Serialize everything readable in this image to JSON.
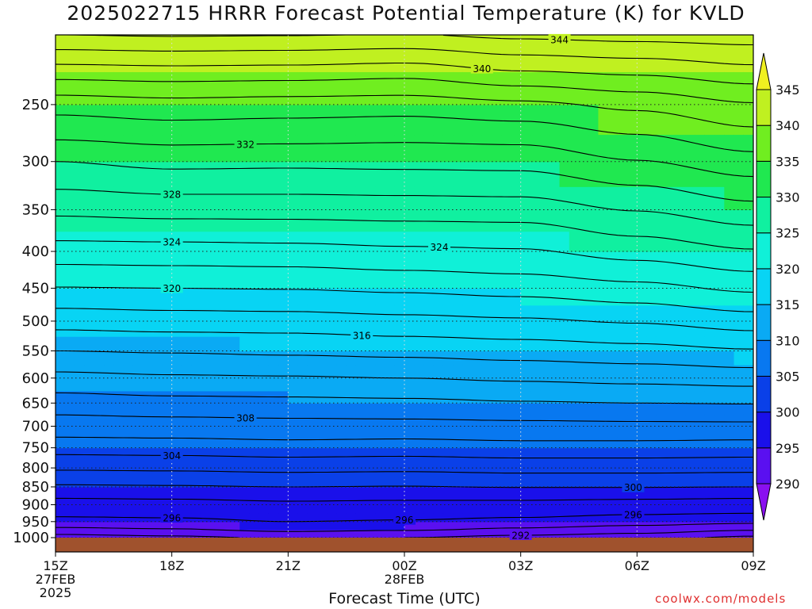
{
  "title": "2025022715 HRRR Forecast Potential Temperature (K) for KVLD",
  "credit": "coolwx.com/models",
  "chart_data": {
    "type": "heatmap",
    "title": "2025022715 HRRR Forecast Potential Temperature (K) for KVLD",
    "xlabel": "Forecast Time (UTC)",
    "ylabel": "",
    "x_ticks": [
      {
        "label": "15Z",
        "sub": [
          "27FEB",
          "2025"
        ],
        "hour": 0
      },
      {
        "label": "18Z",
        "sub": [],
        "hour": 3
      },
      {
        "label": "21Z",
        "sub": [],
        "hour": 6
      },
      {
        "label": "00Z",
        "sub": [
          "28FEB"
        ],
        "hour": 9
      },
      {
        "label": "03Z",
        "sub": [],
        "hour": 12
      },
      {
        "label": "06Z",
        "sub": [],
        "hour": 15
      },
      {
        "label": "09Z",
        "sub": [],
        "hour": 18
      }
    ],
    "xlim": [
      0,
      18
    ],
    "y_ticks": [
      250,
      300,
      350,
      400,
      450,
      500,
      550,
      600,
      650,
      700,
      750,
      800,
      850,
      900,
      950,
      1000
    ],
    "ylim": [
      200,
      1000
    ],
    "y_scale": "log-pressure (inverted)",
    "grid": true,
    "colorbar": {
      "levels": [
        290,
        295,
        300,
        305,
        310,
        315,
        320,
        325,
        330,
        335,
        340,
        345
      ],
      "colors": [
        "#8a10f0",
        "#5a10f0",
        "#1a10ea",
        "#0a40e8",
        "#0878f0",
        "#0aaaf4",
        "#08d4f4",
        "#10f0d8",
        "#10f0a0",
        "#20e850",
        "#70ee20",
        "#c0f020",
        "#f0f020"
      ]
    },
    "contour_labels": [
      "344",
      "340",
      "332",
      "328",
      "324",
      "324",
      "320",
      "316",
      "308",
      "304",
      "300",
      "296",
      "296",
      "296",
      "292"
    ],
    "ground_color": "#a0522d",
    "levels_pressure": [
      1000,
      975,
      950,
      925,
      900,
      875,
      850,
      825,
      800,
      775,
      750,
      725,
      700,
      675,
      650,
      625,
      600,
      575,
      550,
      525,
      500,
      475,
      450,
      425,
      400,
      375,
      350,
      325,
      300,
      275,
      250,
      225,
      200
    ],
    "series": [
      {
        "hour": 0,
        "theta": [
          291.0,
          293.5,
          295.3,
          296.5,
          297.2,
          298.3,
          299.7,
          301.0,
          302.3,
          303.6,
          304.8,
          306.0,
          307.0,
          308.0,
          309.0,
          310.2,
          311.4,
          312.7,
          314.0,
          315.4,
          316.8,
          318.3,
          319.9,
          321.5,
          323.1,
          324.8,
          326.5,
          328.2,
          330.0,
          332.5,
          334.8,
          339.0,
          344.0
        ]
      },
      {
        "hour": 3,
        "theta": [
          291.5,
          293.8,
          295.5,
          296.6,
          297.3,
          298.4,
          299.8,
          301.1,
          302.4,
          303.7,
          304.9,
          306.1,
          307.1,
          308.2,
          309.3,
          310.5,
          311.7,
          312.9,
          314.2,
          315.6,
          317.0,
          318.5,
          320.0,
          321.6,
          323.2,
          324.9,
          326.8,
          328.6,
          330.6,
          332.9,
          335.2,
          339.2,
          344.2
        ]
      },
      {
        "hour": 6,
        "theta": [
          292.3,
          294.5,
          296.0,
          296.9,
          297.6,
          298.6,
          300.0,
          301.3,
          302.6,
          303.9,
          305.1,
          306.3,
          307.3,
          308.3,
          309.4,
          310.6,
          311.8,
          313.1,
          314.4,
          315.7,
          317.1,
          318.6,
          320.1,
          321.7,
          323.3,
          325.0,
          326.8,
          328.6,
          330.5,
          332.8,
          335.0,
          339.1,
          344.1
        ]
      },
      {
        "hour": 9,
        "theta": [
          292.0,
          294.2,
          295.8,
          296.8,
          297.5,
          298.5,
          299.9,
          301.2,
          302.5,
          303.8,
          305.0,
          306.2,
          307.3,
          308.4,
          309.5,
          310.8,
          312.0,
          313.3,
          314.6,
          316.0,
          317.4,
          318.9,
          320.4,
          322.0,
          323.6,
          325.2,
          326.9,
          328.7,
          330.6,
          332.6,
          334.9,
          338.8,
          343.9
        ]
      },
      {
        "hour": 12,
        "theta": [
          291.3,
          293.6,
          295.4,
          296.6,
          297.4,
          298.6,
          300.1,
          301.4,
          302.7,
          304.0,
          305.2,
          306.4,
          307.4,
          308.6,
          309.8,
          311.1,
          312.3,
          313.6,
          314.9,
          316.3,
          317.7,
          319.2,
          320.8,
          322.3,
          323.8,
          325.3,
          327.0,
          328.8,
          330.7,
          332.8,
          335.5,
          339.9,
          344.5
        ]
      },
      {
        "hour": 15,
        "theta": [
          290.8,
          293.0,
          294.9,
          296.2,
          297.2,
          298.5,
          300.1,
          301.4,
          302.7,
          304.0,
          305.2,
          306.4,
          307.5,
          308.7,
          310.0,
          311.3,
          312.6,
          313.9,
          315.3,
          316.7,
          318.2,
          319.8,
          321.4,
          323.1,
          324.8,
          326.4,
          328.1,
          329.9,
          331.9,
          334.0,
          336.5,
          340.4,
          344.8
        ]
      },
      {
        "hour": 18,
        "theta": [
          289.5,
          292.2,
          294.5,
          296.0,
          297.0,
          298.4,
          300.0,
          301.3,
          302.6,
          303.9,
          305.1,
          306.3,
          307.5,
          308.8,
          310.1,
          311.5,
          312.9,
          314.3,
          315.8,
          317.4,
          319.0,
          320.7,
          322.4,
          324.1,
          325.8,
          327.5,
          329.3,
          331.2,
          333.2,
          335.4,
          337.8,
          341.3,
          345.0
        ]
      }
    ]
  }
}
